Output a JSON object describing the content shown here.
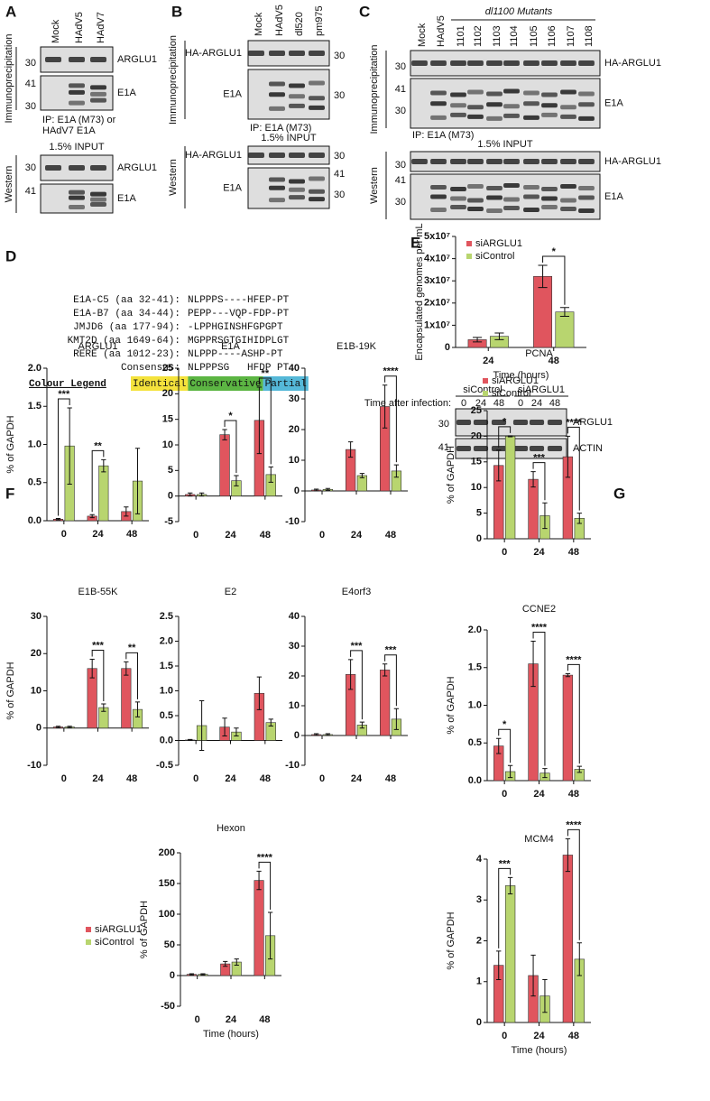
{
  "panel_labels": [
    "A",
    "B",
    "C",
    "D",
    "E",
    "F",
    "G"
  ],
  "blots": {
    "A": {
      "lanes": [
        "Mock",
        "HAdV5",
        "HAdV7"
      ],
      "ip": "Immunoprecipitation",
      "western": "Western",
      "ip_rows": [
        {
          "markers": [
            30
          ],
          "protein": "ARGLU1"
        },
        {
          "markers": [
            41,
            30
          ],
          "protein": "E1A"
        }
      ],
      "ip_note": [
        "IP: E1A (M73) or",
        "HAdV7 E1A"
      ],
      "input": "1.5% INPUT",
      "western_rows": [
        {
          "markers": [
            30
          ],
          "protein": "ARGLU1"
        },
        {
          "markers": [
            41
          ],
          "protein": "E1A"
        }
      ]
    },
    "B": {
      "lanes": [
        "Mock",
        "HAdV5",
        "dl520",
        "pm975"
      ],
      "ip": "Immunoprecipitation",
      "western": "Western",
      "ip_rows": [
        {
          "markers": [
            30
          ],
          "protein": "HA-ARGLU1"
        },
        {
          "markers": [
            30
          ],
          "protein": "E1A"
        }
      ],
      "ip_note": [
        "IP: E1A (M73)"
      ],
      "input": "1.5% INPUT",
      "western_rows": [
        {
          "markers": [
            30
          ],
          "protein": "HA-ARGLU1"
        },
        {
          "markers": [
            41,
            30
          ],
          "protein": "E1A"
        }
      ]
    },
    "C": {
      "header": "dl1100 Mutants",
      "lanes": [
        "Mock",
        "HAdV5",
        "1101",
        "1102",
        "1103",
        "1104",
        "1105",
        "1106",
        "1107",
        "1108"
      ],
      "ip": "Immunoprecipitation",
      "western": "Western",
      "ip_rows": [
        {
          "markers": [
            30
          ],
          "protein": "HA-ARGLU1"
        },
        {
          "markers": [
            41,
            30
          ],
          "protein": "E1A"
        }
      ],
      "ip_note": [
        "IP: E1A (M73)"
      ],
      "input": "1.5% INPUT",
      "western_rows": [
        {
          "markers": [
            30
          ],
          "protein": "HA-ARGLU1"
        },
        {
          "markers": [
            41,
            30
          ],
          "protein": "E1A"
        }
      ]
    },
    "E": {
      "time_label": "Time after infection:",
      "groups": [
        "siControl",
        "siARGLU1"
      ],
      "lanes": [
        "0",
        "24",
        "48",
        "0",
        "24",
        "48"
      ],
      "rows": [
        {
          "markers": [
            30
          ],
          "protein": "ARGLU1"
        },
        {
          "markers": [
            41
          ],
          "protein": "ACTIN"
        }
      ]
    }
  },
  "alignment": {
    "rows": [
      {
        "name": "E1A-C5 (aa 32-41):",
        "sequence": "NLPPPS----HFEP-PT"
      },
      {
        "name": "E1A-B7 (aa 34-44):",
        "sequence": "PEPP---VQP-FDP-PT"
      },
      {
        "name": "JMJD6 (aa 177-94):",
        "sequence": "-LPPHGINSHFGPGPT"
      },
      {
        "name": "KMT2D (aa 1649-64):",
        "sequence": "MGPPRSGTGIHIDPLGT"
      },
      {
        "name": "RERE (aa 1012-23):",
        "sequence": "NLPPP----ASHP-PT"
      }
    ],
    "consensus_label": "Consensus:",
    "consensus": "NLPPPSG   HFDP PT",
    "legend_title": "Colour Legend",
    "legend": [
      {
        "label": "Identical",
        "color": "#f4e23c"
      },
      {
        "label": "Conservative",
        "color": "#5cb543"
      },
      {
        "label": "Partial",
        "color": "#55b8d8"
      }
    ]
  },
  "chart_data": [
    {
      "type": "bar",
      "y_label": "Encapsulated genomes per mL",
      "x_label": "Time (hours)",
      "legend": "top-left",
      "categories": [
        "24",
        "48"
      ],
      "series": [
        {
          "name": "siARGLU1",
          "color": "#e0555e",
          "values": [
            3500000,
            32000000
          ],
          "errors": [
            1000000,
            5000000
          ]
        },
        {
          "name": "siControl",
          "color": "#b8d56f",
          "values": [
            5000000,
            16000000
          ],
          "errors": [
            1500000,
            2000000
          ]
        }
      ],
      "significance": [
        null,
        "*"
      ],
      "ylim": [
        0,
        50000000
      ],
      "yticks": [
        0,
        {
          "value": 10000000,
          "label": "1x10⁷"
        },
        {
          "value": 20000000,
          "label": "2x10⁷"
        },
        {
          "value": 30000000,
          "label": "3x10⁷"
        },
        {
          "value": 40000000,
          "label": "4x10⁷"
        },
        {
          "value": 50000000,
          "label": "5x10⁷"
        }
      ]
    },
    {
      "type": "bar",
      "title": "ARGLU1",
      "y_label": "% of GAPDH",
      "categories": [
        "0",
        "24",
        "48"
      ],
      "series": [
        {
          "color": "#e0555e",
          "values": [
            0.02,
            0.06,
            0.12
          ],
          "errors": [
            0.01,
            0.02,
            0.06
          ]
        },
        {
          "color": "#b8d56f",
          "values": [
            0.98,
            0.72,
            0.52
          ],
          "errors": [
            0.5,
            0.08,
            0.43
          ]
        }
      ],
      "significance": [
        "***",
        "**",
        null
      ],
      "ylim": [
        0,
        2
      ],
      "yticks": [
        {
          "value": 0,
          "label": "0.0"
        },
        0.5,
        {
          "value": 1,
          "label": "1.0"
        },
        1.5,
        {
          "value": 2,
          "label": "2.0"
        }
      ]
    },
    {
      "type": "bar",
      "title": "E1A",
      "categories": [
        "0",
        "24",
        "48"
      ],
      "series": [
        {
          "color": "#e0555e",
          "values": [
            0.3,
            12,
            14.8
          ],
          "errors": [
            0.3,
            1,
            6.5
          ]
        },
        {
          "color": "#b8d56f",
          "values": [
            0.3,
            3,
            4.2
          ],
          "errors": [
            0.3,
            1,
            1.5
          ]
        }
      ],
      "significance": [
        null,
        "*",
        "**"
      ],
      "ylim": [
        -5,
        25
      ],
      "yticks": [
        -5,
        0,
        5,
        10,
        15,
        20,
        25
      ]
    },
    {
      "type": "bar",
      "title": "E1B-19K",
      "categories": [
        "0",
        "24",
        "48"
      ],
      "series": [
        {
          "color": "#e0555e",
          "values": [
            0.3,
            13.5,
            27.5
          ],
          "errors": [
            0.3,
            2.5,
            7
          ]
        },
        {
          "color": "#b8d56f",
          "values": [
            0.5,
            5,
            6.5
          ],
          "errors": [
            0.3,
            0.7,
            2
          ]
        }
      ],
      "significance": [
        null,
        null,
        "****"
      ],
      "ylim": [
        -10,
        40
      ],
      "yticks": [
        -10,
        0,
        10,
        20,
        30,
        40
      ]
    },
    {
      "type": "bar",
      "title": "E1B-55K",
      "y_label": "% of GAPDH",
      "categories": [
        "0",
        "24",
        "48"
      ],
      "series": [
        {
          "color": "#e0555e",
          "values": [
            0.3,
            16,
            16
          ],
          "errors": [
            0.2,
            2.5,
            1.8
          ]
        },
        {
          "color": "#b8d56f",
          "values": [
            0.3,
            5.5,
            5
          ],
          "errors": [
            0.2,
            1,
            2
          ]
        }
      ],
      "significance": [
        null,
        "***",
        "**"
      ],
      "ylim": [
        -10,
        30
      ],
      "yticks": [
        -10,
        0,
        10,
        20,
        30
      ]
    },
    {
      "type": "bar",
      "title": "E2",
      "categories": [
        "0",
        "24",
        "48"
      ],
      "series": [
        {
          "color": "#e0555e",
          "values": [
            0.01,
            0.27,
            0.95
          ],
          "errors": [
            0.01,
            0.18,
            0.33
          ]
        },
        {
          "color": "#b8d56f",
          "values": [
            0.3,
            0.17,
            0.36
          ],
          "errors": [
            0.5,
            0.08,
            0.07
          ]
        }
      ],
      "significance": [
        null,
        null,
        null
      ],
      "ylim": [
        -0.5,
        2.5
      ],
      "yticks": [
        -0.5,
        {
          "value": 0,
          "label": "0.0"
        },
        0.5,
        {
          "value": 1,
          "label": "1.0"
        },
        1.5,
        {
          "value": 2,
          "label": "2.0"
        },
        2.5
      ]
    },
    {
      "type": "bar",
      "title": "E4orf3",
      "categories": [
        "0",
        "24",
        "48"
      ],
      "series": [
        {
          "color": "#e0555e",
          "values": [
            0.3,
            20.5,
            22
          ],
          "errors": [
            0.3,
            5,
            2
          ]
        },
        {
          "color": "#b8d56f",
          "values": [
            0.3,
            3.5,
            5.5
          ],
          "errors": [
            0.3,
            1,
            3.5
          ]
        }
      ],
      "significance": [
        null,
        "***",
        "***"
      ],
      "ylim": [
        -10,
        40
      ],
      "yticks": [
        -10,
        0,
        10,
        20,
        30,
        40
      ]
    },
    {
      "type": "bar",
      "title": "Hexon",
      "y_label": "% of GAPDH",
      "x_label": "Time (hours)",
      "legend": "left",
      "categories": [
        "0",
        "24",
        "48"
      ],
      "series": [
        {
          "name": "siARGLU1",
          "color": "#e0555e",
          "values": [
            2,
            19,
            155
          ],
          "errors": [
            1,
            4,
            15
          ]
        },
        {
          "name": "siControl",
          "color": "#b8d56f",
          "values": [
            2,
            22,
            65
          ],
          "errors": [
            1,
            5,
            38
          ]
        }
      ],
      "significance": [
        null,
        null,
        "****"
      ],
      "ylim": [
        -50,
        200
      ],
      "yticks": [
        -50,
        0,
        50,
        100,
        150,
        200
      ]
    },
    {
      "type": "bar",
      "title": "PCNA",
      "y_label": "% of GAPDH",
      "legend": "top",
      "categories": [
        "0",
        "24",
        "48"
      ],
      "series": [
        {
          "name": "siARGLU1",
          "color": "#e0555e",
          "values": [
            14.3,
            11.6,
            16
          ],
          "errors": [
            3,
            1.5,
            4
          ]
        },
        {
          "name": "siControl",
          "color": "#b8d56f",
          "values": [
            20,
            4.5,
            4
          ],
          "errors": [
            0.1,
            2.5,
            1
          ]
        }
      ],
      "significance": [
        "*",
        "***",
        "****"
      ],
      "ylim": [
        0,
        25
      ],
      "yticks": [
        0,
        5,
        10,
        15,
        20,
        25
      ]
    },
    {
      "type": "bar",
      "title": "CCNE2",
      "y_label": "% of GAPDH",
      "categories": [
        "0",
        "24",
        "48"
      ],
      "series": [
        {
          "color": "#e0555e",
          "values": [
            0.46,
            1.55,
            1.4
          ],
          "errors": [
            0.1,
            0.3,
            0.02
          ]
        },
        {
          "color": "#b8d56f",
          "values": [
            0.12,
            0.1,
            0.15
          ],
          "errors": [
            0.08,
            0.06,
            0.04
          ]
        }
      ],
      "significance": [
        "*",
        "****",
        "****"
      ],
      "ylim": [
        0,
        2
      ],
      "yticks": [
        {
          "value": 0,
          "label": "0.0"
        },
        0.5,
        {
          "value": 1,
          "label": "1.0"
        },
        1.5,
        {
          "value": 2,
          "label": "2.0"
        }
      ]
    },
    {
      "type": "bar",
      "title": "MCM4",
      "y_label": "% of GAPDH",
      "x_label": "Time (hours)",
      "categories": [
        "0",
        "24",
        "48"
      ],
      "series": [
        {
          "color": "#e0555e",
          "values": [
            1.4,
            1.15,
            4.1
          ],
          "errors": [
            0.35,
            0.5,
            0.4
          ]
        },
        {
          "color": "#b8d56f",
          "values": [
            3.35,
            0.65,
            1.55
          ],
          "errors": [
            0.2,
            0.4,
            0.4
          ]
        }
      ],
      "significance": [
        "***",
        null,
        "****"
      ],
      "ylim": [
        0,
        4
      ],
      "yticks": [
        0,
        1,
        2,
        3,
        4
      ]
    }
  ]
}
